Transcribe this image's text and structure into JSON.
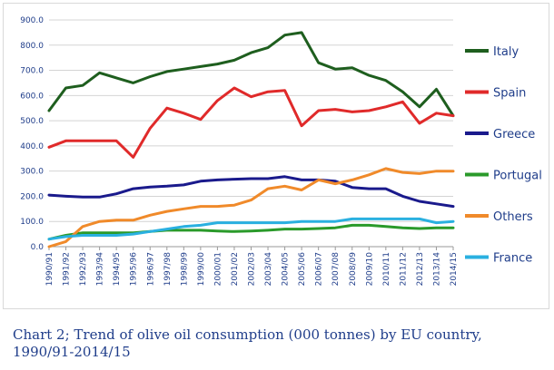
{
  "chart_data": {
    "type": "line",
    "title": "",
    "xlabel": "",
    "ylabel": "",
    "ylim": [
      0,
      900
    ],
    "yticks": [
      "0.0",
      "100.0",
      "200.0",
      "300.0",
      "400.0",
      "500.0",
      "600.0",
      "700.0",
      "800.0",
      "900.0"
    ],
    "grid": true,
    "legend_position": "right",
    "categories": [
      "1990/91",
      "1991/92",
      "1992/93",
      "1993/94",
      "1994/95",
      "1995/96",
      "1996/97",
      "1997/98",
      "1998/99",
      "1999/00",
      "2000/01",
      "2001/02",
      "2002/03",
      "2003/04",
      "2004/05",
      "2005/06",
      "2006/07",
      "2007/08",
      "2008/09",
      "2009/10",
      "2010/11",
      "2011/12",
      "2012/13",
      "2013/14",
      "2014/15"
    ],
    "series": [
      {
        "name": "Italy",
        "color": "#1e5e1e",
        "values": [
          540,
          630,
          640,
          690,
          670,
          650,
          675,
          695,
          705,
          715,
          725,
          740,
          770,
          790,
          840,
          850,
          730,
          705,
          710,
          680,
          660,
          615,
          555,
          625,
          520
        ]
      },
      {
        "name": "Spain",
        "color": "#e02a2a",
        "values": [
          395,
          420,
          420,
          420,
          420,
          355,
          470,
          550,
          530,
          505,
          580,
          630,
          595,
          615,
          620,
          480,
          540,
          545,
          535,
          540,
          555,
          575,
          490,
          530,
          520
        ]
      },
      {
        "name": "Greece",
        "color": "#1a1a8c",
        "values": [
          205,
          200,
          197,
          197,
          210,
          230,
          237,
          240,
          245,
          260,
          265,
          268,
          270,
          270,
          278,
          265,
          265,
          260,
          235,
          230,
          230,
          200,
          180,
          170,
          160
        ]
      },
      {
        "name": "Portugal",
        "color": "#2a9a2a",
        "values": [
          30,
          45,
          55,
          55,
          55,
          55,
          60,
          65,
          65,
          65,
          62,
          60,
          62,
          65,
          70,
          70,
          72,
          75,
          85,
          85,
          80,
          75,
          72,
          75,
          75
        ]
      },
      {
        "name": "Others",
        "color": "#f08a2a",
        "values": [
          0,
          20,
          80,
          100,
          105,
          105,
          125,
          140,
          150,
          160,
          160,
          165,
          185,
          230,
          240,
          225,
          265,
          250,
          265,
          285,
          310,
          295,
          290,
          300,
          300
        ]
      },
      {
        "name": "France",
        "color": "#2ab0e0",
        "values": [
          30,
          40,
          45,
          45,
          45,
          50,
          60,
          70,
          80,
          85,
          95,
          95,
          95,
          95,
          95,
          100,
          100,
          100,
          110,
          110,
          110,
          110,
          110,
          95,
          100
        ]
      }
    ]
  },
  "caption": {
    "line1": "Chart 2; Trend of olive oil consumption (000 tonnes) by EU country,",
    "line2": "1990/91-2014/15"
  }
}
